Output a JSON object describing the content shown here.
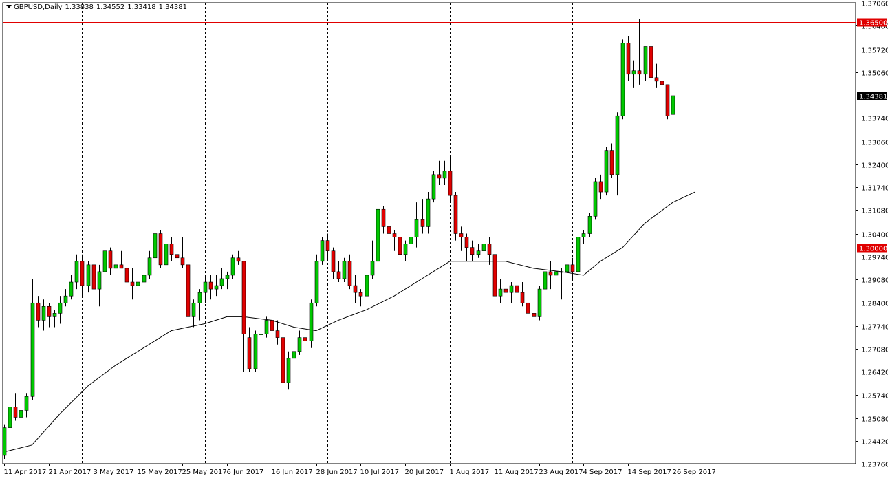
{
  "header": {
    "symbol": "GBPUSD,Daily",
    "open": "1.33838",
    "high": "1.34552",
    "low": "1.33418",
    "close": "1.34381"
  },
  "colors": {
    "bull": "#00c800",
    "bear": "#e00000",
    "wick": "#000000",
    "hline": "#e00000",
    "ma": "#000000",
    "grid": "#000000",
    "background": "#ffffff",
    "current_price_bg": "#000000"
  },
  "chart_data": {
    "type": "candlestick",
    "symbol": "GBPUSD",
    "timeframe": "Daily",
    "ylim": [
      1.2376,
      1.3706
    ],
    "y_ticks": [
      "1.37060",
      "1.36400",
      "1.35720",
      "1.35060",
      "1.34381",
      "1.33740",
      "1.33060",
      "1.32400",
      "1.31740",
      "1.31080",
      "1.30400",
      "1.29740",
      "1.29080",
      "1.28400",
      "1.27740",
      "1.27080",
      "1.26420",
      "1.25740",
      "1.25080",
      "1.24420",
      "1.23760"
    ],
    "x_ticks": [
      {
        "label": "11 Apr 2017",
        "index": 0
      },
      {
        "label": "21 Apr 2017",
        "index": 8
      },
      {
        "label": "3 May 2017",
        "index": 16
      },
      {
        "label": "15 May 2017",
        "index": 24
      },
      {
        "label": "25 May 2017",
        "index": 32
      },
      {
        "label": "6 Jun 2017",
        "index": 40
      },
      {
        "label": "16 Jun 2017",
        "index": 48
      },
      {
        "label": "28 Jun 2017",
        "index": 56
      },
      {
        "label": "10 Jul 2017",
        "index": 64
      },
      {
        "label": "20 Jul 2017",
        "index": 72
      },
      {
        "label": "1 Aug 2017",
        "index": 80
      },
      {
        "label": "11 Aug 2017",
        "index": 88
      },
      {
        "label": "23 Aug 2017",
        "index": 96
      },
      {
        "label": "4 Sep 2017",
        "index": 104
      },
      {
        "label": "14 Sep 2017",
        "index": 112
      },
      {
        "label": "26 Sep 2017",
        "index": 120
      }
    ],
    "period_separators": [
      14,
      36,
      58,
      80,
      102,
      124
    ],
    "horizontal_levels": [
      {
        "price": 1.365,
        "label": "1.36500"
      },
      {
        "price": 1.3,
        "label": "1.30000"
      }
    ],
    "current_price": {
      "price": 1.34381,
      "label": "1.34381"
    },
    "candles": [
      [
        1.24,
        1.249,
        1.239,
        1.248
      ],
      [
        1.248,
        1.256,
        1.247,
        1.254
      ],
      [
        1.254,
        1.258,
        1.25,
        1.251
      ],
      [
        1.251,
        1.256,
        1.249,
        1.253
      ],
      [
        1.253,
        1.258,
        1.251,
        1.257
      ],
      [
        1.257,
        1.291,
        1.256,
        1.284
      ],
      [
        1.284,
        1.286,
        1.277,
        1.279
      ],
      [
        1.279,
        1.285,
        1.276,
        1.283
      ],
      [
        1.283,
        1.284,
        1.277,
        1.28
      ],
      [
        1.28,
        1.282,
        1.277,
        1.281
      ],
      [
        1.281,
        1.286,
        1.278,
        1.284
      ],
      [
        1.284,
        1.288,
        1.283,
        1.286
      ],
      [
        1.286,
        1.292,
        1.285,
        1.29
      ],
      [
        1.29,
        1.298,
        1.288,
        1.296
      ],
      [
        1.296,
        1.298,
        1.286,
        1.289
      ],
      [
        1.289,
        1.296,
        1.287,
        1.295
      ],
      [
        1.295,
        1.296,
        1.285,
        1.288
      ],
      [
        1.288,
        1.295,
        1.283,
        1.293
      ],
      [
        1.293,
        1.3,
        1.292,
        1.299
      ],
      [
        1.299,
        1.3,
        1.292,
        1.294
      ],
      [
        1.294,
        1.298,
        1.291,
        1.295
      ],
      [
        1.295,
        1.299,
        1.294,
        1.294
      ],
      [
        1.294,
        1.296,
        1.285,
        1.29
      ],
      [
        1.29,
        1.294,
        1.285,
        1.289
      ],
      [
        1.289,
        1.293,
        1.288,
        1.29
      ],
      [
        1.29,
        1.294,
        1.288,
        1.292
      ],
      [
        1.292,
        1.299,
        1.291,
        1.297
      ],
      [
        1.297,
        1.305,
        1.296,
        1.304
      ],
      [
        1.304,
        1.305,
        1.294,
        1.295
      ],
      [
        1.295,
        1.302,
        1.294,
        1.301
      ],
      [
        1.301,
        1.303,
        1.296,
        1.298
      ],
      [
        1.298,
        1.301,
        1.295,
        1.297
      ],
      [
        1.297,
        1.303,
        1.294,
        1.295
      ],
      [
        1.295,
        1.296,
        1.277,
        1.28
      ],
      [
        1.28,
        1.285,
        1.277,
        1.284
      ],
      [
        1.284,
        1.288,
        1.279,
        1.287
      ],
      [
        1.287,
        1.292,
        1.284,
        1.29
      ],
      [
        1.29,
        1.292,
        1.285,
        1.288
      ],
      [
        1.288,
        1.292,
        1.286,
        1.289
      ],
      [
        1.289,
        1.294,
        1.288,
        1.291
      ],
      [
        1.291,
        1.293,
        1.288,
        1.292
      ],
      [
        1.292,
        1.298,
        1.291,
        1.297
      ],
      [
        1.297,
        1.299,
        1.295,
        1.296
      ],
      [
        1.296,
        1.296,
        1.264,
        1.275
      ],
      [
        1.274,
        1.277,
        1.264,
        1.265
      ],
      [
        1.265,
        1.276,
        1.264,
        1.275
      ],
      [
        1.275,
        1.276,
        1.268,
        1.275
      ],
      [
        1.275,
        1.28,
        1.274,
        1.279
      ],
      [
        1.279,
        1.281,
        1.273,
        1.276
      ],
      [
        1.276,
        1.279,
        1.272,
        1.274
      ],
      [
        1.274,
        1.276,
        1.259,
        1.261
      ],
      [
        1.261,
        1.27,
        1.259,
        1.268
      ],
      [
        1.268,
        1.271,
        1.266,
        1.27
      ],
      [
        1.27,
        1.276,
        1.269,
        1.274
      ],
      [
        1.274,
        1.277,
        1.272,
        1.273
      ],
      [
        1.273,
        1.285,
        1.271,
        1.284
      ],
      [
        1.284,
        1.298,
        1.283,
        1.296
      ],
      [
        1.296,
        1.303,
        1.295,
        1.302
      ],
      [
        1.302,
        1.304,
        1.296,
        1.299
      ],
      [
        1.299,
        1.3,
        1.291,
        1.293
      ],
      [
        1.293,
        1.296,
        1.29,
        1.291
      ],
      [
        1.291,
        1.297,
        1.29,
        1.296
      ],
      [
        1.296,
        1.298,
        1.288,
        1.289
      ],
      [
        1.289,
        1.292,
        1.284,
        1.287
      ],
      [
        1.287,
        1.288,
        1.283,
        1.286
      ],
      [
        1.286,
        1.294,
        1.282,
        1.292
      ],
      [
        1.292,
        1.302,
        1.291,
        1.296
      ],
      [
        1.296,
        1.312,
        1.295,
        1.311
      ],
      [
        1.311,
        1.312,
        1.304,
        1.306
      ],
      [
        1.306,
        1.313,
        1.303,
        1.304
      ],
      [
        1.304,
        1.305,
        1.299,
        1.303
      ],
      [
        1.303,
        1.304,
        1.296,
        1.298
      ],
      [
        1.298,
        1.302,
        1.296,
        1.301
      ],
      [
        1.301,
        1.305,
        1.299,
        1.303
      ],
      [
        1.303,
        1.313,
        1.3,
        1.308
      ],
      [
        1.308,
        1.314,
        1.304,
        1.306
      ],
      [
        1.306,
        1.316,
        1.304,
        1.314
      ],
      [
        1.314,
        1.322,
        1.313,
        1.321
      ],
      [
        1.321,
        1.325,
        1.318,
        1.32
      ],
      [
        1.32,
        1.325,
        1.318,
        1.322
      ],
      [
        1.322,
        1.326,
        1.313,
        1.315
      ],
      [
        1.315,
        1.316,
        1.302,
        1.304
      ],
      [
        1.304,
        1.306,
        1.299,
        1.303
      ],
      [
        1.303,
        1.304,
        1.296,
        1.3
      ],
      [
        1.3,
        1.302,
        1.296,
        1.298
      ],
      [
        1.298,
        1.301,
        1.297,
        1.299
      ],
      [
        1.299,
        1.303,
        1.296,
        1.301
      ],
      [
        1.301,
        1.303,
        1.295,
        1.298
      ],
      [
        1.298,
        1.298,
        1.284,
        1.286
      ],
      [
        1.286,
        1.291,
        1.284,
        1.288
      ],
      [
        1.288,
        1.292,
        1.285,
        1.287
      ],
      [
        1.287,
        1.29,
        1.284,
        1.289
      ],
      [
        1.289,
        1.291,
        1.284,
        1.287
      ],
      [
        1.287,
        1.29,
        1.283,
        1.284
      ],
      [
        1.284,
        1.286,
        1.278,
        1.281
      ],
      [
        1.281,
        1.285,
        1.277,
        1.28
      ],
      [
        1.28,
        1.289,
        1.279,
        1.288
      ],
      [
        1.288,
        1.294,
        1.287,
        1.293
      ],
      [
        1.293,
        1.296,
        1.288,
        1.292
      ],
      [
        1.292,
        1.294,
        1.291,
        1.293
      ],
      [
        1.293,
        1.294,
        1.285,
        1.293
      ],
      [
        1.293,
        1.296,
        1.292,
        1.295
      ],
      [
        1.295,
        1.297,
        1.291,
        1.293
      ],
      [
        1.293,
        1.304,
        1.291,
        1.303
      ],
      [
        1.303,
        1.305,
        1.301,
        1.304
      ],
      [
        1.304,
        1.31,
        1.303,
        1.309
      ],
      [
        1.309,
        1.32,
        1.308,
        1.319
      ],
      [
        1.319,
        1.321,
        1.314,
        1.316
      ],
      [
        1.316,
        1.329,
        1.315,
        1.328
      ],
      [
        1.328,
        1.33,
        1.32,
        1.321
      ],
      [
        1.321,
        1.339,
        1.315,
        1.338
      ],
      [
        1.338,
        1.36,
        1.337,
        1.359
      ],
      [
        1.359,
        1.361,
        1.348,
        1.35
      ],
      [
        1.35,
        1.354,
        1.346,
        1.351
      ],
      [
        1.351,
        1.366,
        1.347,
        1.35
      ],
      [
        1.35,
        1.358,
        1.348,
        1.358
      ],
      [
        1.358,
        1.359,
        1.347,
        1.349
      ],
      [
        1.349,
        1.353,
        1.346,
        1.348
      ],
      [
        1.348,
        1.351,
        1.344,
        1.347
      ],
      [
        1.347,
        1.347,
        1.337,
        1.338
      ],
      [
        1.3384,
        1.3455,
        1.3342,
        1.3438
      ]
    ],
    "moving_average": [
      [
        0,
        1.241
      ],
      [
        5,
        1.243
      ],
      [
        10,
        1.252
      ],
      [
        15,
        1.26
      ],
      [
        20,
        1.266
      ],
      [
        25,
        1.271
      ],
      [
        30,
        1.276
      ],
      [
        33,
        1.277
      ],
      [
        36,
        1.278
      ],
      [
        40,
        1.28
      ],
      [
        43,
        1.28
      ],
      [
        48,
        1.279
      ],
      [
        52,
        1.277
      ],
      [
        56,
        1.276
      ],
      [
        60,
        1.279
      ],
      [
        65,
        1.282
      ],
      [
        70,
        1.286
      ],
      [
        75,
        1.291
      ],
      [
        78,
        1.294
      ],
      [
        80,
        1.296
      ],
      [
        83,
        1.296
      ],
      [
        87,
        1.296
      ],
      [
        90,
        1.296
      ],
      [
        95,
        1.294
      ],
      [
        100,
        1.293
      ],
      [
        104,
        1.292
      ],
      [
        107,
        1.296
      ],
      [
        111,
        1.3
      ],
      [
        115,
        1.307
      ],
      [
        120,
        1.313
      ],
      [
        124,
        1.316
      ]
    ]
  }
}
